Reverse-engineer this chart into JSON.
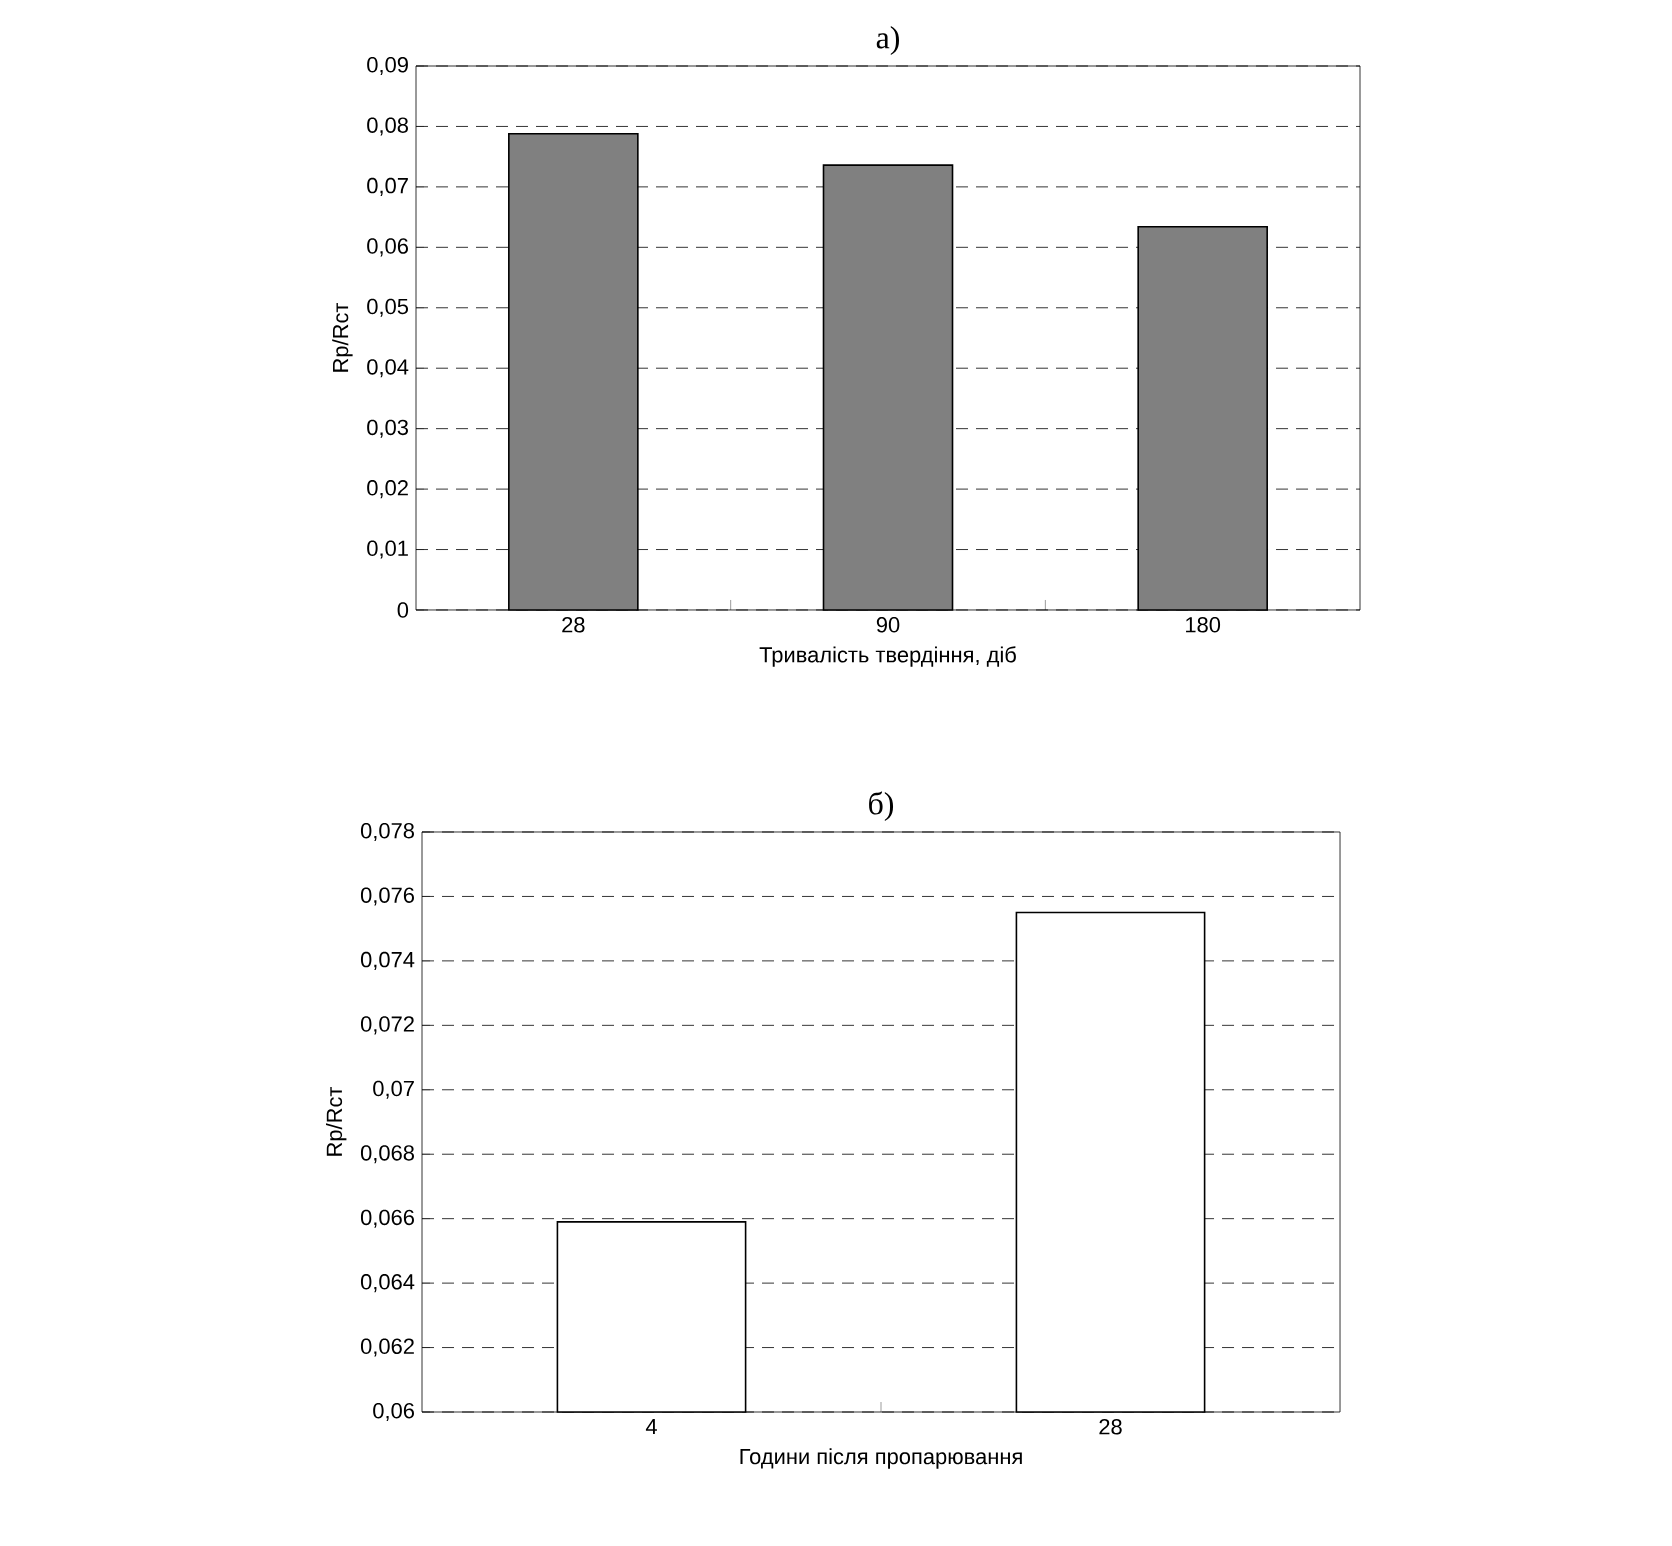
{
  "chart_data": [
    {
      "type": "bar",
      "title": "а)",
      "categories": [
        "28",
        "90",
        "180"
      ],
      "values": [
        0.0788,
        0.0736,
        0.0634
      ],
      "color": "#808080",
      "xlabel": "Тривалість твердіння, діб",
      "ylabel": "Rp/Rст",
      "ylim": [
        0,
        0.09
      ],
      "yticks": [
        0,
        {
          "value": 0.01,
          "label": "0,01"
        },
        {
          "value": 0.02,
          "label": "0,02"
        },
        {
          "value": 0.03,
          "label": "0,03"
        },
        {
          "value": 0.04,
          "label": "0,04"
        },
        {
          "value": 0.05,
          "label": "0,05"
        },
        {
          "value": 0.06,
          "label": "0,06"
        },
        {
          "value": 0.07,
          "label": "0,07"
        },
        {
          "value": 0.08,
          "label": "0,08"
        },
        {
          "value": 0.09,
          "label": "0,09"
        }
      ],
      "grid": "y"
    },
    {
      "type": "bar",
      "title": "б)",
      "categories": [
        "4",
        "28"
      ],
      "values": [
        0.0659,
        0.0755
      ],
      "color": "#ffffff",
      "xlabel": "Години після пропарювання",
      "ylabel": "Rp/Rст",
      "ylim": [
        0.06,
        0.078
      ],
      "yticks": [
        {
          "value": 0.06,
          "label": "0,06"
        },
        {
          "value": 0.062,
          "label": "0,062"
        },
        {
          "value": 0.064,
          "label": "0,064"
        },
        {
          "value": 0.066,
          "label": "0,066"
        },
        {
          "value": 0.068,
          "label": "0,068"
        },
        {
          "value": 0.07,
          "label": "0,07"
        },
        {
          "value": 0.072,
          "label": "0,072"
        },
        {
          "value": 0.074,
          "label": "0,074"
        },
        {
          "value": 0.076,
          "label": "0,076"
        },
        {
          "value": 0.078,
          "label": "0,078"
        }
      ],
      "grid": "y"
    }
  ]
}
